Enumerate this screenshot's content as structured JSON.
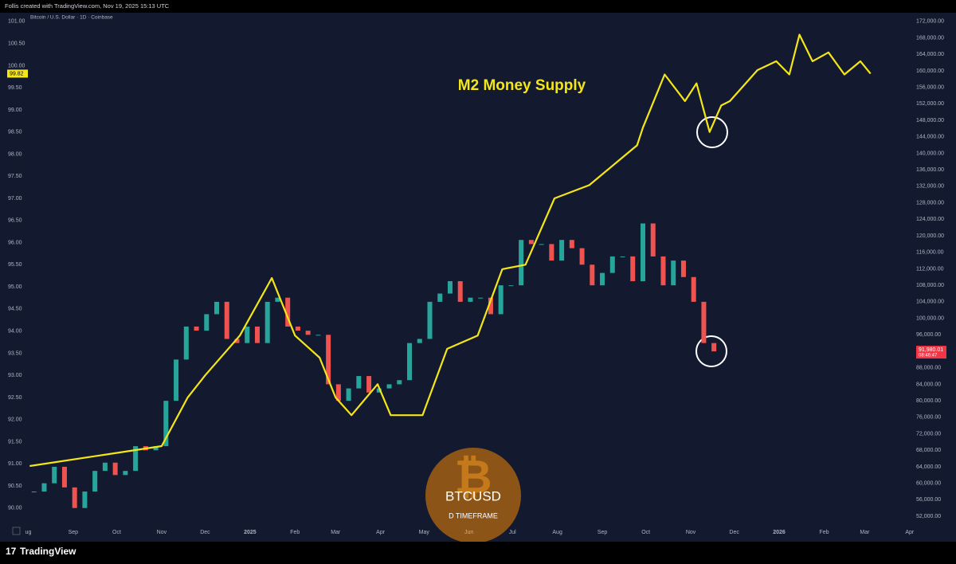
{
  "header": {
    "caption": "Follis created with TradingView.com, Nov 19, 2025 15:13 UTC",
    "symbol": "Bitcoin / U.S. Dollar · 1D · Coinbase"
  },
  "footer": {
    "brand": "TradingView"
  },
  "chart_data": {
    "type": "candle-line",
    "annotation": "D TIMEFRAME",
    "xlim": [
      "2024-07-29",
      "2026-03-31"
    ],
    "xticks": [
      {
        "value": "2024-08-01",
        "label": "ug"
      },
      {
        "value": "2024-09-01",
        "label": "Sep"
      },
      {
        "value": "2024-10-01",
        "label": "Oct"
      },
      {
        "value": "2024-11-01",
        "label": "Nov"
      },
      {
        "value": "2024-12-01",
        "label": "Dec"
      },
      {
        "value": "2025-01-01",
        "label": "2025"
      },
      {
        "value": "2025-02-01",
        "label": "Feb"
      },
      {
        "value": "2025-03-01",
        "label": "Mar"
      },
      {
        "value": "2025-04-01",
        "label": "Apr"
      },
      {
        "value": "2025-05-01",
        "label": "May"
      },
      {
        "value": "2025-06-01",
        "label": "Jun"
      },
      {
        "value": "2025-07-01",
        "label": "Jul"
      },
      {
        "value": "2025-08-01",
        "label": "Aug"
      },
      {
        "value": "2025-09-01",
        "label": "Sep"
      },
      {
        "value": "2025-10-01",
        "label": "Oct"
      },
      {
        "value": "2025-11-01",
        "label": "Nov"
      },
      {
        "value": "2025-12-01",
        "label": "Dec"
      },
      {
        "value": "2026-01-01",
        "label": "2026"
      },
      {
        "value": "2026-02-01",
        "label": "Feb"
      },
      {
        "value": "2026-03-01",
        "label": "Mar"
      },
      {
        "value": "2026-04-01",
        "label": "Apr"
      }
    ],
    "ylim": [
      89.6,
      101.16
    ],
    "yticks": [
      {
        "value": 90,
        "label": "90.00"
      },
      {
        "value": 90.5,
        "label": "90.50"
      },
      {
        "value": 91,
        "label": "91.00"
      },
      {
        "value": 91.5,
        "label": "91.50"
      },
      {
        "value": 92,
        "label": "92.00"
      },
      {
        "value": 92.5,
        "label": "92.50"
      },
      {
        "value": 93,
        "label": "93.00"
      },
      {
        "value": 93.5,
        "label": "93.50"
      },
      {
        "value": 94,
        "label": "94.00"
      },
      {
        "value": 94.5,
        "label": "94.50"
      },
      {
        "value": 95,
        "label": "95.00"
      },
      {
        "value": 95.5,
        "label": "95.50"
      },
      {
        "value": 96,
        "label": "96.00"
      },
      {
        "value": 96.5,
        "label": "96.50"
      },
      {
        "value": 97,
        "label": "97.00"
      },
      {
        "value": 97.5,
        "label": "97.50"
      },
      {
        "value": 98,
        "label": "98.00"
      },
      {
        "value": 98.5,
        "label": "98.50"
      },
      {
        "value": 99,
        "label": "99.00"
      },
      {
        "value": 99.5,
        "label": "99.50"
      },
      {
        "value": 100,
        "label": "100.00"
      },
      {
        "value": 100.5,
        "label": "100.50"
      },
      {
        "value": 101,
        "label": "101.00"
      }
    ],
    "y2lim": [
      49700,
      173700
    ],
    "y2ticks": [
      {
        "value": 52000,
        "label": "52,000.00"
      },
      {
        "value": 56000,
        "label": "56,000.00"
      },
      {
        "value": 60000,
        "label": "60,000.00"
      },
      {
        "value": 64000,
        "label": "64,000.00"
      },
      {
        "value": 68000,
        "label": "68,000.00"
      },
      {
        "value": 72000,
        "label": "72,000.00"
      },
      {
        "value": 76000,
        "label": "76,000.00"
      },
      {
        "value": 80000,
        "label": "80,000.00"
      },
      {
        "value": 84000,
        "label": "84,000.00"
      },
      {
        "value": 88000,
        "label": "88,000.00"
      },
      {
        "value": 92000,
        "label": "92,000.00"
      },
      {
        "value": 96000,
        "label": "96,000.00"
      },
      {
        "value": 100000,
        "label": "100,000.00"
      },
      {
        "value": 104000,
        "label": "104,000.00"
      },
      {
        "value": 108000,
        "label": "108,000.00"
      },
      {
        "value": 112000,
        "label": "112,000.00"
      },
      {
        "value": 116000,
        "label": "116,000.00"
      },
      {
        "value": 120000,
        "label": "120,000.00"
      },
      {
        "value": 124000,
        "label": "124,000.00"
      },
      {
        "value": 128000,
        "label": "128,000.00"
      },
      {
        "value": 132000,
        "label": "132,000.00"
      },
      {
        "value": 136000,
        "label": "136,000.00"
      },
      {
        "value": 140000,
        "label": "140,000.00"
      },
      {
        "value": 144000,
        "label": "144,000.00"
      },
      {
        "value": 148000,
        "label": "148,000.00"
      },
      {
        "value": 152000,
        "label": "152,000.00"
      },
      {
        "value": 156000,
        "label": "156,000.00"
      },
      {
        "value": 160000,
        "label": "160,000.00"
      },
      {
        "value": 164000,
        "label": "164,000.00"
      },
      {
        "value": 168000,
        "label": "168,000.00"
      },
      {
        "value": 172000,
        "label": "172,000.00"
      }
    ],
    "grid": false,
    "last_price": {
      "value": 91980.01,
      "label": "91,980.01",
      "countdown": "08:46:47",
      "color": "#f23645"
    },
    "m2_last": {
      "value": 99.82,
      "label": "99.82",
      "color": "#f5e616"
    },
    "series": [
      {
        "name": "BTCUSD",
        "axis": "y2",
        "up_color": "#26a69a",
        "down_color": "#ef5350",
        "x": [
          "2024-08-05",
          "2024-08-12",
          "2024-08-19",
          "2024-08-26",
          "2024-09-02",
          "2024-09-09",
          "2024-09-16",
          "2024-09-23",
          "2024-09-30",
          "2024-10-07",
          "2024-10-14",
          "2024-10-21",
          "2024-10-28",
          "2024-11-04",
          "2024-11-11",
          "2024-11-18",
          "2024-11-25",
          "2024-12-02",
          "2024-12-09",
          "2024-12-16",
          "2024-12-23",
          "2024-12-30",
          "2025-01-06",
          "2025-01-13",
          "2025-01-20",
          "2025-01-27",
          "2025-02-03",
          "2025-02-10",
          "2025-02-17",
          "2025-02-24",
          "2025-03-03",
          "2025-03-10",
          "2025-03-17",
          "2025-03-24",
          "2025-03-31",
          "2025-04-07",
          "2025-04-14",
          "2025-04-21",
          "2025-04-28",
          "2025-05-05",
          "2025-05-12",
          "2025-05-19",
          "2025-05-26",
          "2025-06-02",
          "2025-06-09",
          "2025-06-16",
          "2025-06-23",
          "2025-06-30",
          "2025-07-07",
          "2025-07-14",
          "2025-07-21",
          "2025-07-28",
          "2025-08-04",
          "2025-08-11",
          "2025-08-18",
          "2025-08-25",
          "2025-09-01",
          "2025-09-08",
          "2025-09-15",
          "2025-09-22",
          "2025-09-29",
          "2025-10-06",
          "2025-10-13",
          "2025-10-20",
          "2025-10-27",
          "2025-11-03",
          "2025-11-10",
          "2025-11-17"
        ],
        "values": [
          58000,
          60000,
          64000,
          59000,
          54000,
          58000,
          63000,
          65000,
          62000,
          63000,
          69000,
          68000,
          69000,
          80000,
          90000,
          98000,
          97000,
          101000,
          104000,
          95000,
          94000,
          98000,
          94000,
          104000,
          105000,
          98000,
          97000,
          96000,
          96000,
          84000,
          80000,
          83000,
          86000,
          82000,
          83000,
          84000,
          85000,
          94000,
          95000,
          104000,
          106000,
          109000,
          104000,
          105000,
          105000,
          101000,
          108000,
          108000,
          119000,
          118000,
          118000,
          114000,
          119000,
          117000,
          113000,
          108000,
          111000,
          115000,
          115000,
          109000,
          123000,
          115000,
          108000,
          114000,
          110000,
          104000,
          94000,
          91980.01
        ]
      },
      {
        "name": "M2 Money Supply",
        "axis": "y",
        "color": "#f5e616",
        "x": [
          "2024-08-02",
          "2024-11-01",
          "2024-11-19",
          "2024-12-01",
          "2024-12-25",
          "2025-01-16",
          "2025-02-01",
          "2025-02-18",
          "2025-03-01",
          "2025-03-12",
          "2025-03-30",
          "2025-04-08",
          "2025-04-30",
          "2025-05-17",
          "2025-06-07",
          "2025-06-24",
          "2025-07-10",
          "2025-07-30",
          "2025-08-23",
          "2025-09-14",
          "2025-09-25",
          "2025-09-29",
          "2025-10-14",
          "2025-10-28",
          "2025-11-05",
          "2025-11-14",
          "2025-11-22",
          "2025-11-28",
          "2025-12-17",
          "2025-12-30",
          "2026-01-08",
          "2026-01-15",
          "2026-01-24",
          "2026-02-04",
          "2026-02-15",
          "2026-02-26",
          "2026-03-05"
        ],
        "values": [
          90.95,
          91.4,
          92.5,
          93.0,
          93.9,
          95.2,
          93.9,
          93.4,
          92.5,
          92.1,
          92.8,
          92.1,
          92.1,
          93.6,
          93.9,
          95.4,
          95.5,
          97.0,
          97.3,
          97.9,
          98.2,
          98.6,
          99.8,
          99.2,
          99.6,
          98.5,
          99.1,
          99.2,
          99.9,
          100.1,
          99.8,
          100.7,
          100.1,
          100.3,
          99.8,
          100.1,
          99.82
        ]
      }
    ]
  }
}
